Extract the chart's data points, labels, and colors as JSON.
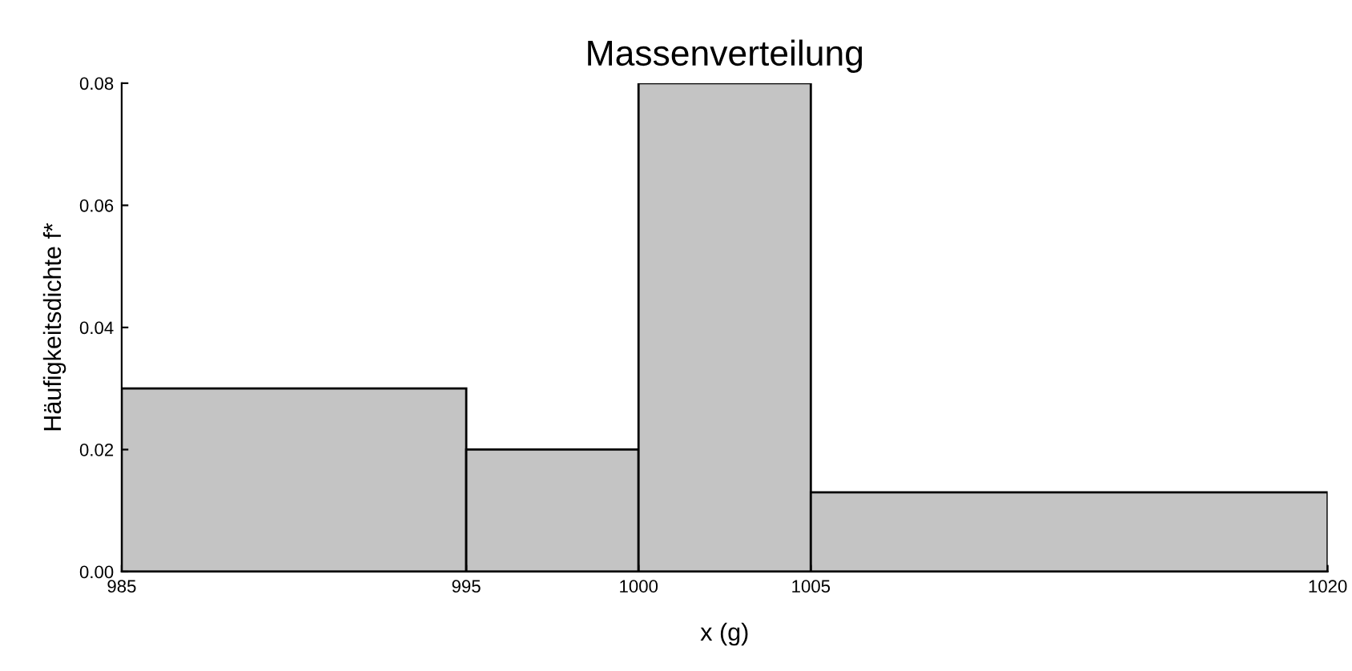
{
  "chart_data": {
    "type": "histogram",
    "title": "Massenverteilung",
    "xlabel": "x (g)",
    "ylabel": "Häufigkeitsdichte f*",
    "bins": [
      985,
      995,
      1000,
      1005,
      1020
    ],
    "values": [
      0.03,
      0.02,
      0.08,
      0.013
    ],
    "color": "#c4c4c4",
    "xlim": [
      985,
      1020
    ],
    "xticks": [
      985,
      995,
      1000,
      1005,
      1020
    ],
    "ylim": [
      0,
      0.08
    ],
    "yticks": [
      {
        "value": 0,
        "label": "0.00"
      },
      {
        "value": 0.02,
        "label": "0.02"
      },
      {
        "value": 0.04,
        "label": "0.04"
      },
      {
        "value": 0.06,
        "label": "0.06"
      },
      {
        "value": 0.08,
        "label": "0.08"
      }
    ],
    "grid": false
  }
}
